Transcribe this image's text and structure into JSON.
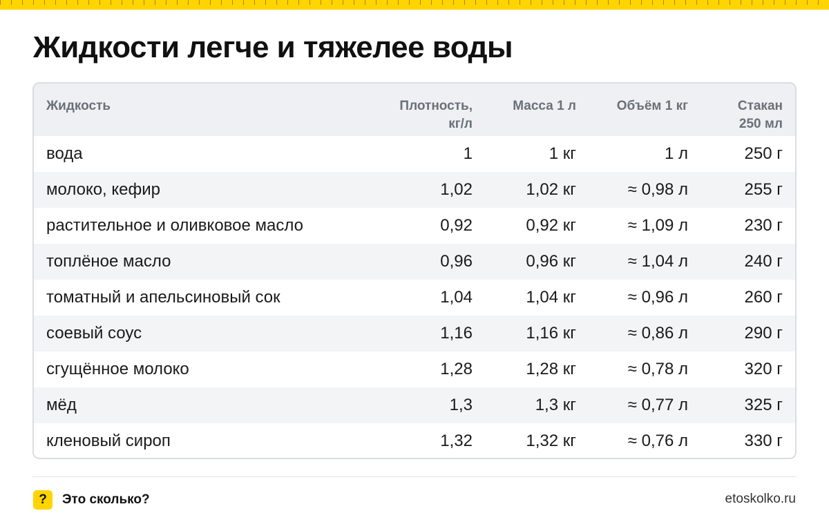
{
  "title": "Жидкости легче и тяжелее воды",
  "table": {
    "headers": {
      "liquid": "Жидкость",
      "density_line1": "Плотность,",
      "density_line2": "кг/л",
      "mass": "Масса 1 л",
      "volume": "Объём 1 кг",
      "glass_line1": "Стакан",
      "glass_line2": "250 мл"
    },
    "rows": [
      {
        "liquid": "вода",
        "density": "1",
        "mass": "1 кг",
        "volume": "1 л",
        "glass": "250 г"
      },
      {
        "liquid": "молоко, кефир",
        "density": "1,02",
        "mass": "1,02 кг",
        "volume": "≈ 0,98 л",
        "glass": "255 г"
      },
      {
        "liquid": "растительное и оливковое масло",
        "density": "0,92",
        "mass": "0,92 кг",
        "volume": "≈ 1,09 л",
        "glass": "230 г"
      },
      {
        "liquid": "топлёное масло",
        "density": "0,96",
        "mass": "0,96 кг",
        "volume": "≈ 1,04 л",
        "glass": "240 г"
      },
      {
        "liquid": "томатный и апельсиновый сок",
        "density": "1,04",
        "mass": "1,04 кг",
        "volume": "≈ 0,96 л",
        "glass": "260 г"
      },
      {
        "liquid": "соевый соус",
        "density": "1,16",
        "mass": "1,16 кг",
        "volume": "≈ 0,86 л",
        "glass": "290 г"
      },
      {
        "liquid": "сгущённое молоко",
        "density": "1,28",
        "mass": "1,28 кг",
        "volume": "≈ 0,78 л",
        "glass": "320 г"
      },
      {
        "liquid": "мёд",
        "density": "1,3",
        "mass": "1,3 кг",
        "volume": "≈ 0,77 л",
        "glass": "325 г"
      },
      {
        "liquid": "кленовый сироп",
        "density": "1,32",
        "mass": "1,32 кг",
        "volume": "≈ 0,76 л",
        "glass": "330 г"
      }
    ]
  },
  "footer": {
    "icon_glyph": "?",
    "brand": "Это сколько?",
    "site": "etoskolko.ru"
  },
  "colors": {
    "accent": "#ffd400",
    "header_bg": "#eef0f3",
    "zebra_bg": "#f3f4f6"
  }
}
